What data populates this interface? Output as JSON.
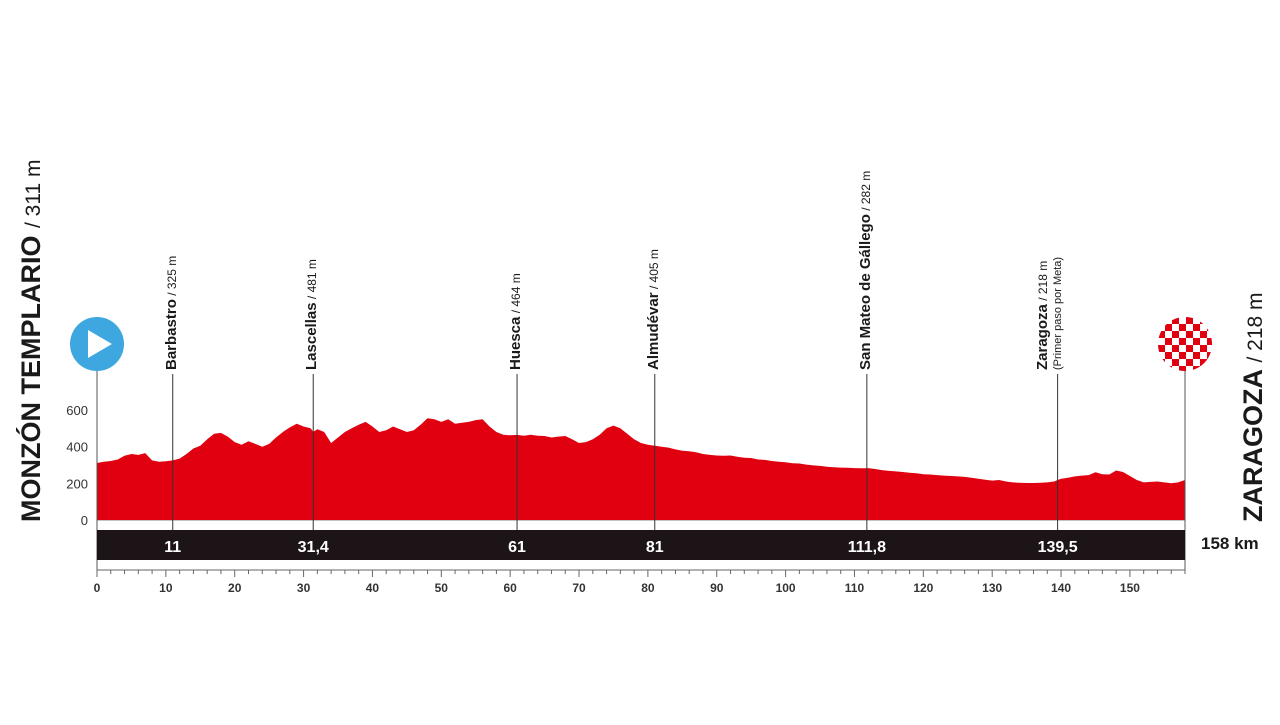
{
  "chart_data": {
    "type": "area",
    "x_unit": "km",
    "y_ticks": [
      0,
      200,
      400,
      600
    ],
    "x_ticks": [
      0,
      10,
      20,
      30,
      40,
      50,
      60,
      70,
      80,
      90,
      100,
      110,
      120,
      130,
      140,
      150
    ],
    "xlim": [
      0,
      158
    ],
    "ylim": [
      0,
      600
    ],
    "total_distance": "158 km",
    "area_color": "#e0000f",
    "start": {
      "name": "MONZÓN TEMPLARIO",
      "altitude": "/ 311 m",
      "km": 0,
      "marker_color": "#3ea7e0"
    },
    "finish": {
      "name": "ZARAGOZA",
      "altitude": "/ 218 m",
      "km": 158
    },
    "waypoints": [
      {
        "name": "Barbastro",
        "altitude": "/ 325 m",
        "km": 11,
        "km_label": "11"
      },
      {
        "name": "Lascellas",
        "altitude": "/ 481 m",
        "km": 31.4,
        "km_label": "31,4"
      },
      {
        "name": "Huesca",
        "altitude": "/ 464 m",
        "km": 61,
        "km_label": "61"
      },
      {
        "name": "Almudévar",
        "altitude": "/ 405 m",
        "km": 81,
        "km_label": "81"
      },
      {
        "name": "San Mateo de Gállego",
        "altitude": "/ 282 m",
        "km": 111.8,
        "km_label": "111,8"
      },
      {
        "name": "Zaragoza",
        "altitude": "/ 218 m",
        "note": "(Primer paso por Meta)",
        "km": 139.5,
        "km_label": "139,5"
      }
    ],
    "profile": [
      [
        0,
        311
      ],
      [
        1,
        318
      ],
      [
        2,
        322
      ],
      [
        3,
        330
      ],
      [
        4,
        350
      ],
      [
        5,
        360
      ],
      [
        6,
        355
      ],
      [
        7,
        365
      ],
      [
        8,
        325
      ],
      [
        9,
        318
      ],
      [
        10,
        320
      ],
      [
        11,
        325
      ],
      [
        12,
        335
      ],
      [
        13,
        360
      ],
      [
        14,
        390
      ],
      [
        15,
        405
      ],
      [
        16,
        440
      ],
      [
        17,
        470
      ],
      [
        18,
        475
      ],
      [
        19,
        455
      ],
      [
        20,
        425
      ],
      [
        21,
        410
      ],
      [
        22,
        430
      ],
      [
        23,
        415
      ],
      [
        24,
        400
      ],
      [
        25,
        415
      ],
      [
        26,
        450
      ],
      [
        27,
        480
      ],
      [
        28,
        505
      ],
      [
        29,
        525
      ],
      [
        30,
        510
      ],
      [
        31,
        500
      ],
      [
        31.4,
        481
      ],
      [
        32,
        495
      ],
      [
        33,
        480
      ],
      [
        34,
        420
      ],
      [
        35,
        450
      ],
      [
        36,
        480
      ],
      [
        37,
        500
      ],
      [
        38,
        520
      ],
      [
        39,
        535
      ],
      [
        40,
        510
      ],
      [
        41,
        480
      ],
      [
        42,
        490
      ],
      [
        43,
        510
      ],
      [
        44,
        495
      ],
      [
        45,
        480
      ],
      [
        46,
        490
      ],
      [
        47,
        520
      ],
      [
        48,
        555
      ],
      [
        49,
        550
      ],
      [
        50,
        535
      ],
      [
        51,
        550
      ],
      [
        52,
        525
      ],
      [
        53,
        530
      ],
      [
        54,
        535
      ],
      [
        55,
        545
      ],
      [
        56,
        550
      ],
      [
        57,
        510
      ],
      [
        58,
        480
      ],
      [
        59,
        465
      ],
      [
        60,
        462
      ],
      [
        61,
        464
      ],
      [
        62,
        460
      ],
      [
        63,
        465
      ],
      [
        64,
        460
      ],
      [
        65,
        458
      ],
      [
        66,
        450
      ],
      [
        67,
        455
      ],
      [
        68,
        458
      ],
      [
        69,
        440
      ],
      [
        70,
        420
      ],
      [
        71,
        425
      ],
      [
        72,
        440
      ],
      [
        73,
        465
      ],
      [
        74,
        500
      ],
      [
        75,
        515
      ],
      [
        76,
        500
      ],
      [
        77,
        470
      ],
      [
        78,
        440
      ],
      [
        79,
        420
      ],
      [
        80,
        410
      ],
      [
        81,
        405
      ],
      [
        82,
        400
      ],
      [
        83,
        395
      ],
      [
        84,
        385
      ],
      [
        85,
        378
      ],
      [
        86,
        375
      ],
      [
        87,
        370
      ],
      [
        88,
        360
      ],
      [
        89,
        355
      ],
      [
        90,
        352
      ],
      [
        91,
        350
      ],
      [
        92,
        352
      ],
      [
        93,
        345
      ],
      [
        94,
        340
      ],
      [
        95,
        338
      ],
      [
        96,
        330
      ],
      [
        97,
        328
      ],
      [
        98,
        322
      ],
      [
        99,
        318
      ],
      [
        100,
        315
      ],
      [
        101,
        310
      ],
      [
        102,
        308
      ],
      [
        103,
        302
      ],
      [
        104,
        298
      ],
      [
        105,
        295
      ],
      [
        106,
        290
      ],
      [
        107,
        288
      ],
      [
        108,
        286
      ],
      [
        109,
        285
      ],
      [
        110,
        283
      ],
      [
        111,
        282
      ],
      [
        111.8,
        282
      ],
      [
        112,
        283
      ],
      [
        113,
        278
      ],
      [
        114,
        272
      ],
      [
        115,
        268
      ],
      [
        116,
        265
      ],
      [
        117,
        262
      ],
      [
        118,
        258
      ],
      [
        119,
        255
      ],
      [
        120,
        250
      ],
      [
        121,
        248
      ],
      [
        122,
        245
      ],
      [
        123,
        242
      ],
      [
        124,
        240
      ],
      [
        125,
        238
      ],
      [
        126,
        235
      ],
      [
        127,
        230
      ],
      [
        128,
        225
      ],
      [
        129,
        220
      ],
      [
        130,
        215
      ],
      [
        131,
        218
      ],
      [
        132,
        210
      ],
      [
        133,
        205
      ],
      [
        134,
        203
      ],
      [
        135,
        202
      ],
      [
        136,
        202
      ],
      [
        137,
        203
      ],
      [
        138,
        205
      ],
      [
        139,
        210
      ],
      [
        139.5,
        218
      ],
      [
        140,
        225
      ],
      [
        141,
        230
      ],
      [
        142,
        238
      ],
      [
        143,
        242
      ],
      [
        144,
        245
      ],
      [
        145,
        260
      ],
      [
        146,
        250
      ],
      [
        147,
        248
      ],
      [
        148,
        270
      ],
      [
        149,
        262
      ],
      [
        150,
        240
      ],
      [
        151,
        218
      ],
      [
        152,
        205
      ],
      [
        153,
        208
      ],
      [
        154,
        210
      ],
      [
        155,
        205
      ],
      [
        156,
        200
      ],
      [
        157,
        205
      ],
      [
        158,
        218
      ]
    ]
  }
}
